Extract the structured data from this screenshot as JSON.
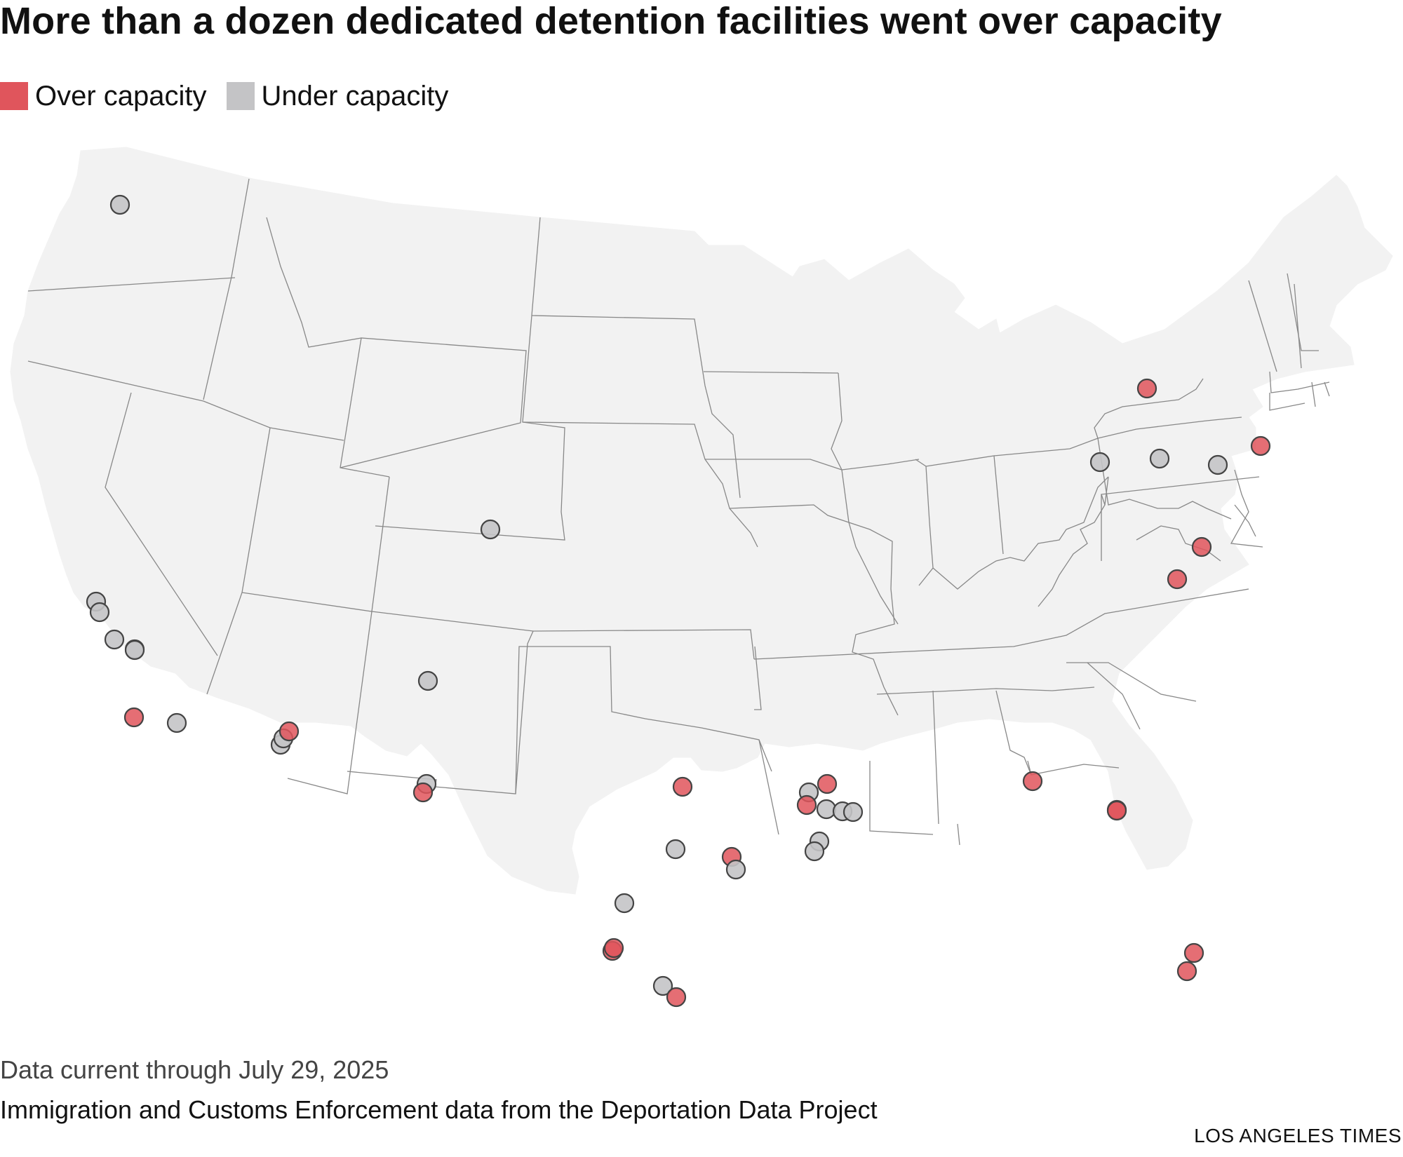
{
  "header": {
    "title": "More than a dozen dedicated detention facilities went over capacity"
  },
  "legend": {
    "items": [
      {
        "label": "Over capacity",
        "color": "#e0555c"
      },
      {
        "label": "Under capacity",
        "color": "#c4c4c6"
      }
    ]
  },
  "map": {
    "land_color": "#f2f2f2",
    "border_color": "#888888",
    "over_color": "#e0555c",
    "under_color": "#c4c4c6",
    "marker_stroke": "#444444"
  },
  "footer": {
    "note": "Data current through July 29, 2025",
    "source": "Immigration and Customs Enforcement data from the Deportation Data Project",
    "credit": "LOS ANGELES TIMES"
  }
}
